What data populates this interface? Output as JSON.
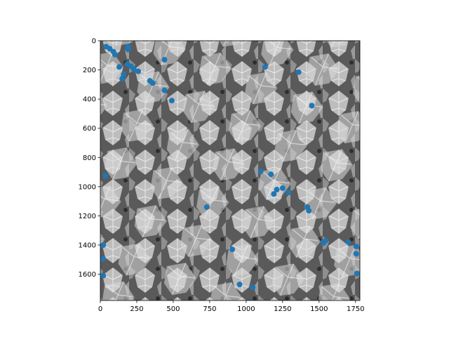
{
  "chart_data": {
    "type": "scatter",
    "title": "",
    "xlabel": "",
    "ylabel": "",
    "background": "grayscale photograph of ivy leaves",
    "xlim": [
      0,
      1780
    ],
    "ylim": [
      1780,
      0
    ],
    "x_ticks": [
      0,
      250,
      500,
      750,
      1000,
      1250,
      1500,
      1750
    ],
    "y_ticks": [
      0,
      200,
      400,
      600,
      800,
      1000,
      1200,
      1400,
      1600
    ],
    "marker_color": "#1f77b4",
    "points": [
      {
        "x": 40,
        "y": 40
      },
      {
        "x": 65,
        "y": 55
      },
      {
        "x": 90,
        "y": 75
      },
      {
        "x": 100,
        "y": 95
      },
      {
        "x": 130,
        "y": 180
      },
      {
        "x": 160,
        "y": 230
      },
      {
        "x": 150,
        "y": 260
      },
      {
        "x": 190,
        "y": 40
      },
      {
        "x": 190,
        "y": 60
      },
      {
        "x": 185,
        "y": 160
      },
      {
        "x": 210,
        "y": 175
      },
      {
        "x": 230,
        "y": 195
      },
      {
        "x": 260,
        "y": 210
      },
      {
        "x": 340,
        "y": 275
      },
      {
        "x": 360,
        "y": 290
      },
      {
        "x": 440,
        "y": 130
      },
      {
        "x": 440,
        "y": 340
      },
      {
        "x": 490,
        "y": 410
      },
      {
        "x": 1130,
        "y": 180
      },
      {
        "x": 1360,
        "y": 215
      },
      {
        "x": 1450,
        "y": 445
      },
      {
        "x": 35,
        "y": 925
      },
      {
        "x": 1100,
        "y": 895
      },
      {
        "x": 1170,
        "y": 915
      },
      {
        "x": 1190,
        "y": 1050
      },
      {
        "x": 1210,
        "y": 1020
      },
      {
        "x": 1250,
        "y": 1010
      },
      {
        "x": 1290,
        "y": 1040
      },
      {
        "x": 1420,
        "y": 1140
      },
      {
        "x": 1430,
        "y": 1165
      },
      {
        "x": 730,
        "y": 1140
      },
      {
        "x": 20,
        "y": 1400
      },
      {
        "x": 20,
        "y": 1495
      },
      {
        "x": 20,
        "y": 1610
      },
      {
        "x": 905,
        "y": 1430
      },
      {
        "x": 955,
        "y": 1670
      },
      {
        "x": 1045,
        "y": 1690
      },
      {
        "x": 1530,
        "y": 1385
      },
      {
        "x": 1545,
        "y": 1370
      },
      {
        "x": 1700,
        "y": 1380
      },
      {
        "x": 1755,
        "y": 1410
      },
      {
        "x": 1755,
        "y": 1460
      },
      {
        "x": 1760,
        "y": 1595
      }
    ]
  }
}
